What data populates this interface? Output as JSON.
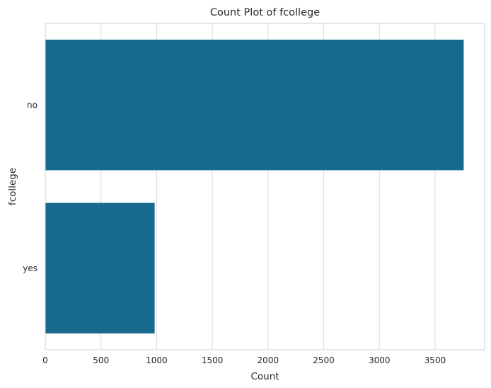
{
  "chart_data": {
    "type": "bar",
    "orientation": "horizontal",
    "title": "Count Plot of fcollege",
    "xlabel": "Count",
    "ylabel": "fcollege",
    "categories": [
      "no",
      "yes"
    ],
    "values": [
      3757,
      982
    ],
    "xlim": [
      0,
      3945
    ],
    "xticks": [
      0,
      500,
      1000,
      1500,
      2000,
      2500,
      3000,
      3500
    ],
    "grid": "vertical",
    "colors": {
      "bar": "#176a8e",
      "grid": "#dcdcdc",
      "axes_edge": "#d0d0d0",
      "text": "#262626",
      "background": "#ffffff"
    }
  }
}
